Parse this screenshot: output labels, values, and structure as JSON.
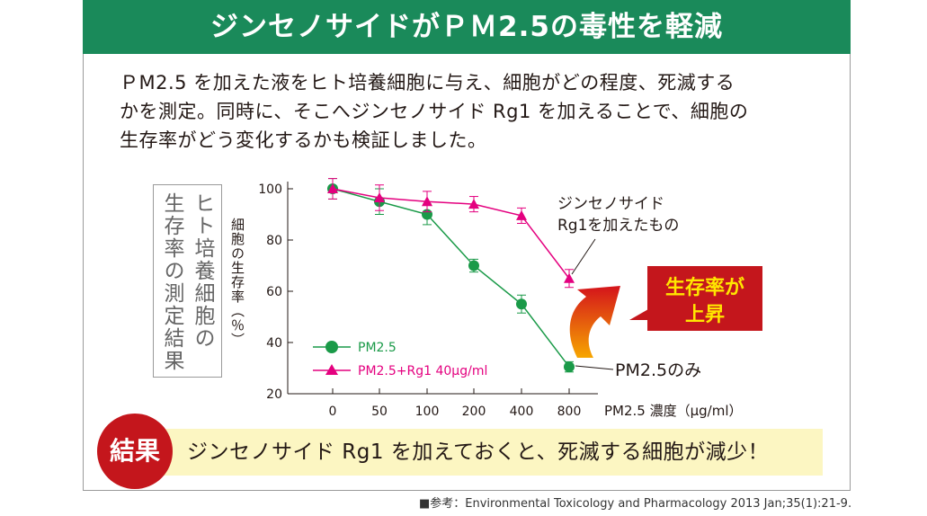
{
  "banner": {
    "title": "ジンセノサイドがＰＭ2.5の毒性を軽減"
  },
  "intro": {
    "lines": [
      "ＰM2.5 を加えた液をヒト培養細胞に与え、細胞がどの程度、死滅する",
      "かを測定。同時に、そこへジンセノサイド Rg1 を加えることで、細胞の",
      "生存率がどう変化するかも検証しました。"
    ]
  },
  "side_label": {
    "line1": "ヒト培養細胞の",
    "line2": "生存率の測定結果"
  },
  "chart_data": {
    "type": "line",
    "x": [
      "0",
      "50",
      "100",
      "200",
      "400",
      "800"
    ],
    "xlabel": "PM2.5 濃度（μg/ml）",
    "ylabel": "細胞の生存率（％）",
    "ylim": [
      20,
      100
    ],
    "yticks": [
      20,
      40,
      60,
      80,
      100
    ],
    "series": [
      {
        "name": "PM2.5",
        "color": "#1a9a48",
        "marker": "circle",
        "values": [
          100,
          95,
          90,
          70,
          55,
          30.5
        ],
        "errors": [
          4,
          5,
          4,
          2.5,
          3.5,
          2
        ]
      },
      {
        "name": "PM2.5+Rg1 40μg/ml",
        "color": "#e4007f",
        "marker": "triangle",
        "values": [
          100,
          96.5,
          95,
          94,
          89.5,
          65
        ],
        "errors": [
          4,
          5,
          4,
          3,
          3,
          3.5
        ]
      }
    ],
    "annotations": {
      "rg1_line1": "ジンセノサイド",
      "rg1_line2": "Rg1を加えたもの",
      "pm_only": "PM2.5のみ",
      "increase_line1": "生存率が",
      "increase_line2": "上昇"
    },
    "legend_position": "bottom-left"
  },
  "result": {
    "badge": "結果",
    "text": "ジンセノサイド Rg1 を加えておくと、死滅する細胞が減少！"
  },
  "source": {
    "text": "■参考：Environmental Toxicology and Pharmacology 2013 Jan;35(1):21-9."
  },
  "colors": {
    "banner": "#1a8a5a",
    "badge": "#c4161c",
    "callout": "#c4161c",
    "callout_text": "#ffe600",
    "result_bg": "#fcf6c2"
  }
}
